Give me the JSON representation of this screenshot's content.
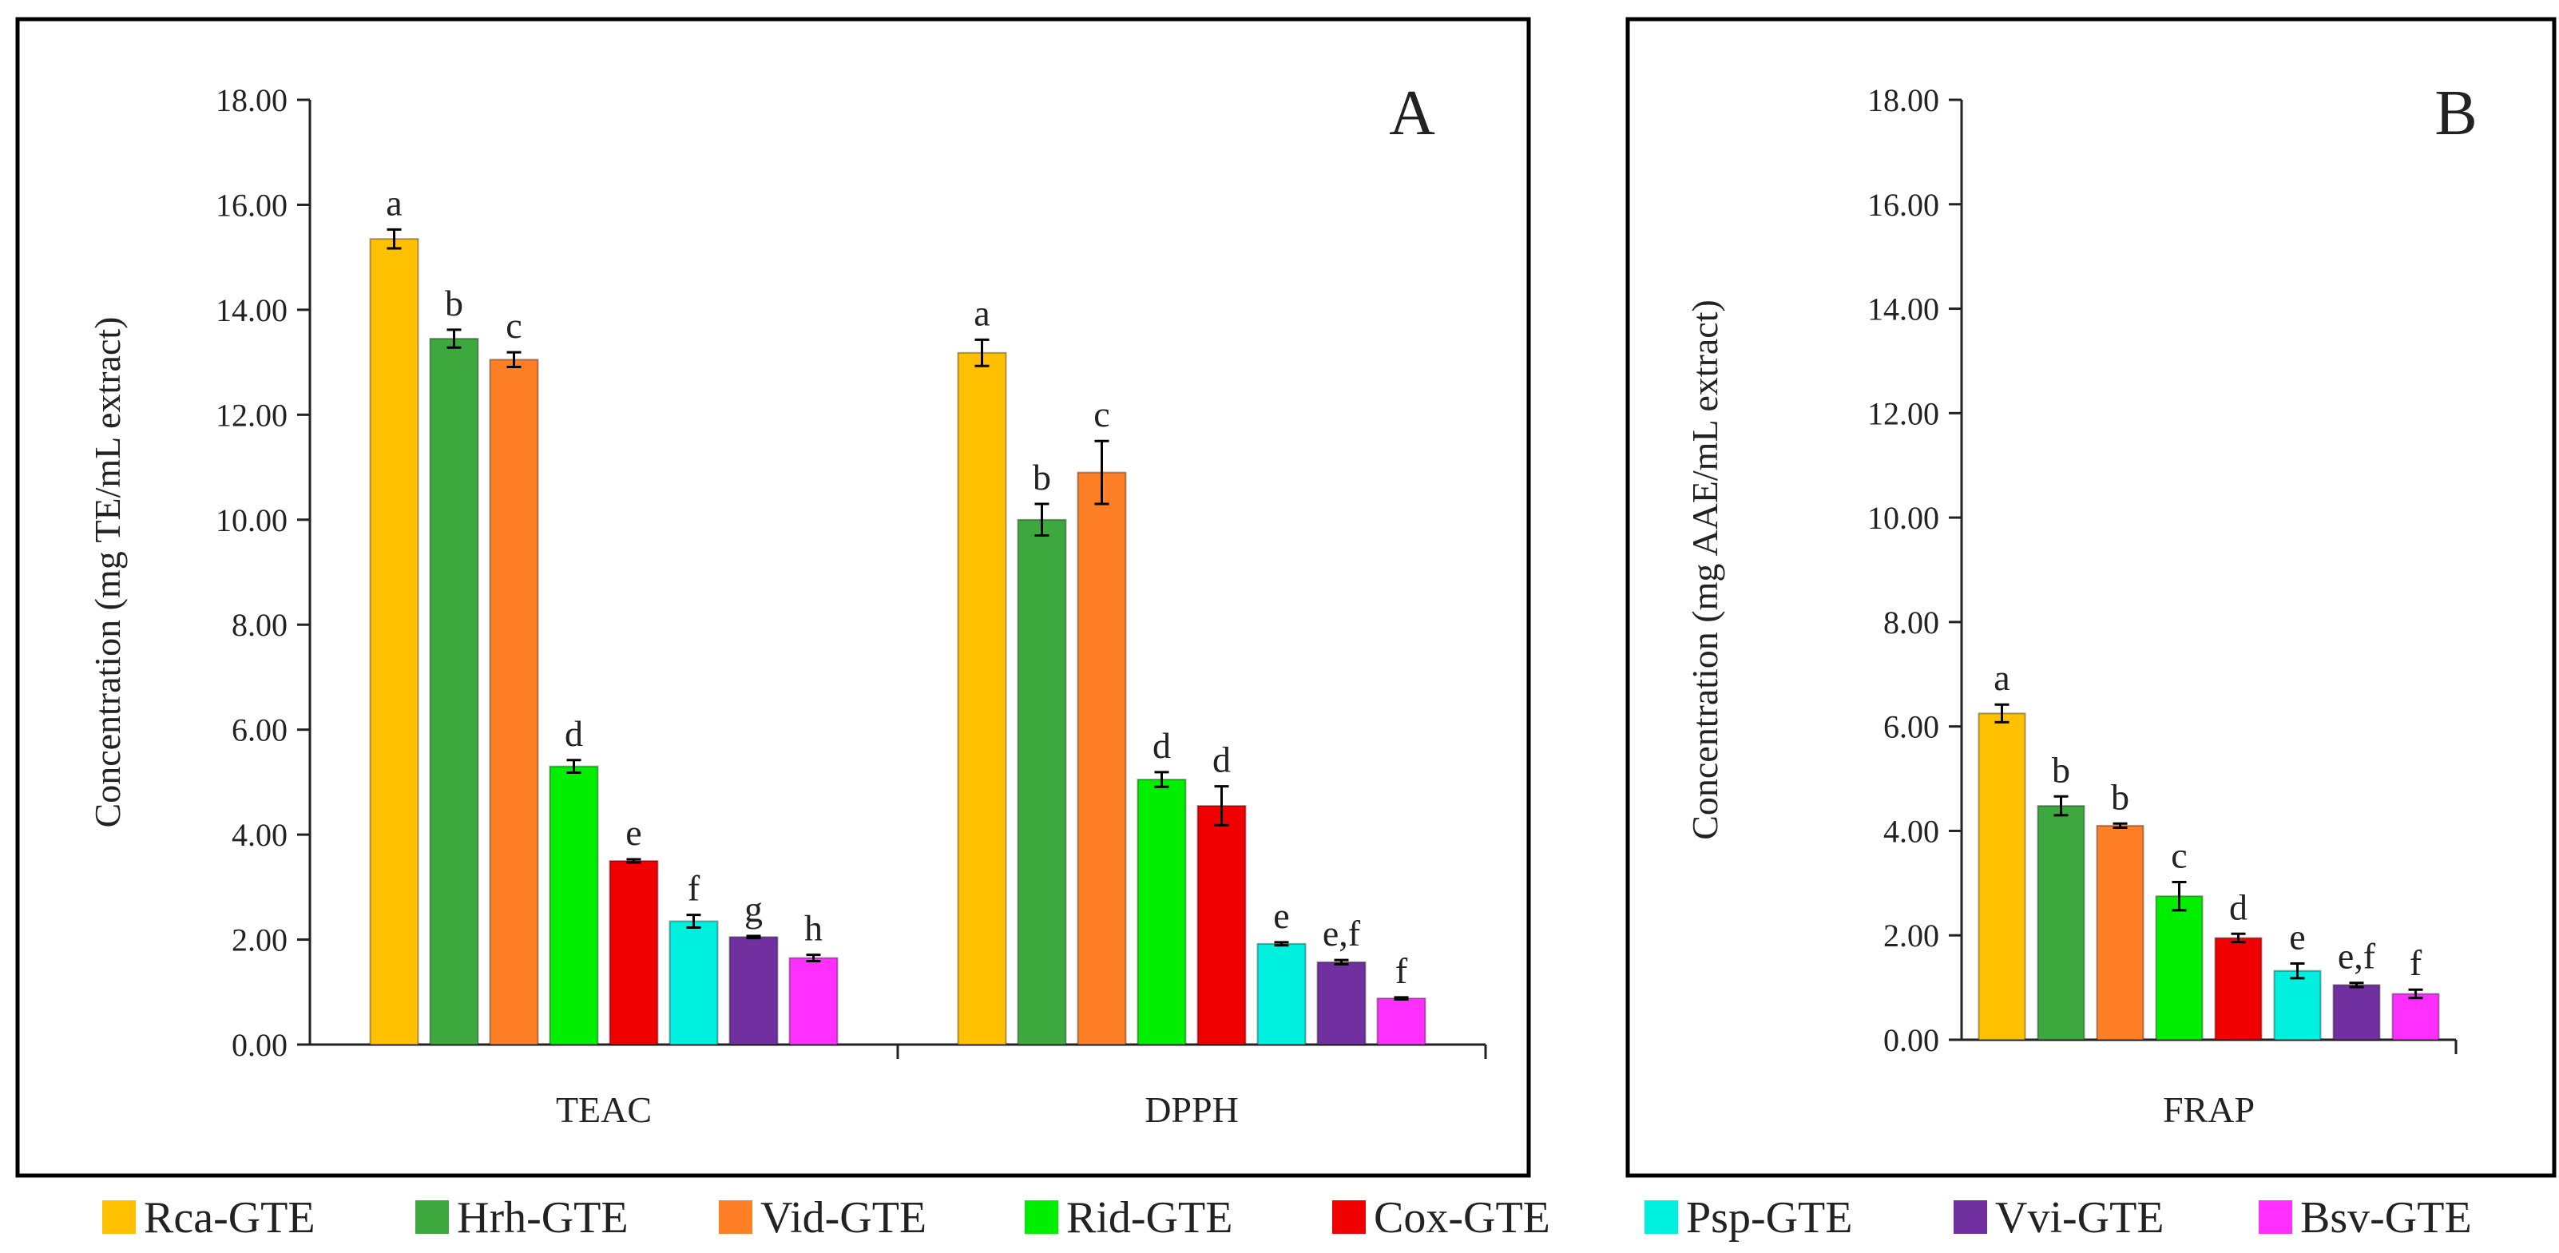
{
  "chart_data": [
    {
      "panel": "A",
      "type": "bar",
      "ylabel": "Concentration (mg TE/mL extract)",
      "ylim": [
        0,
        18
      ],
      "yticks": [
        0,
        2,
        4,
        6,
        8,
        10,
        12,
        14,
        16,
        18
      ],
      "ytick_labels": [
        "0.00",
        "2.00",
        "4.00",
        "6.00",
        "8.00",
        "10.00",
        "12.00",
        "14.00",
        "16.00",
        "18.00"
      ],
      "categories": [
        "TEAC",
        "DPPH"
      ],
      "series": [
        {
          "name": "Rca-GTE",
          "values": [
            15.35,
            13.18
          ],
          "errors": [
            0.18,
            0.25
          ],
          "labels": [
            "a",
            "a"
          ]
        },
        {
          "name": "Hrh-GTE",
          "values": [
            13.45,
            10.0
          ],
          "errors": [
            0.17,
            0.3
          ],
          "labels": [
            "b",
            "b"
          ]
        },
        {
          "name": "Vid-GTE",
          "values": [
            13.05,
            10.9
          ],
          "errors": [
            0.14,
            0.6
          ],
          "labels": [
            "c",
            "c"
          ]
        },
        {
          "name": "Rid-GTE",
          "values": [
            5.3,
            5.05
          ],
          "errors": [
            0.12,
            0.14
          ],
          "labels": [
            "d",
            "d"
          ]
        },
        {
          "name": "Cox-GTE",
          "values": [
            3.5,
            4.55
          ],
          "errors": [
            0.03,
            0.37
          ],
          "labels": [
            "e",
            "d"
          ]
        },
        {
          "name": "Psp-GTE",
          "values": [
            2.35,
            1.92
          ],
          "errors": [
            0.12,
            0.03
          ],
          "labels": [
            "f",
            "e"
          ]
        },
        {
          "name": "Vvi-GTE",
          "values": [
            2.05,
            1.57
          ],
          "errors": [
            0.02,
            0.04
          ],
          "labels": [
            "g",
            "e,f"
          ]
        },
        {
          "name": "Bsv-GTE",
          "values": [
            1.65,
            0.88
          ],
          "errors": [
            0.06,
            0.02
          ],
          "labels": [
            "h",
            "f"
          ]
        }
      ]
    },
    {
      "panel": "B",
      "type": "bar",
      "ylabel": "Concentration (mg  AAE/mL extract)",
      "ylim": [
        0,
        18
      ],
      "yticks": [
        0,
        2,
        4,
        6,
        8,
        10,
        12,
        14,
        16,
        18
      ],
      "ytick_labels": [
        "0.00",
        "2.00",
        "4.00",
        "6.00",
        "8.00",
        "10.00",
        "12.00",
        "14.00",
        "16.00",
        "18.00"
      ],
      "categories": [
        "FRAP"
      ],
      "series": [
        {
          "name": "Rca-GTE",
          "values": [
            6.25
          ],
          "errors": [
            0.17
          ],
          "labels": [
            "a"
          ]
        },
        {
          "name": "Hrh-GTE",
          "values": [
            4.48
          ],
          "errors": [
            0.18
          ],
          "labels": [
            "b"
          ]
        },
        {
          "name": "Vid-GTE",
          "values": [
            4.1
          ],
          "errors": [
            0.04
          ],
          "labels": [
            "b"
          ]
        },
        {
          "name": "Rid-GTE",
          "values": [
            2.75
          ],
          "errors": [
            0.27
          ],
          "labels": [
            "c"
          ]
        },
        {
          "name": "Cox-GTE",
          "values": [
            1.95
          ],
          "errors": [
            0.08
          ],
          "labels": [
            "d"
          ]
        },
        {
          "name": "Psp-GTE",
          "values": [
            1.32
          ],
          "errors": [
            0.14
          ],
          "labels": [
            "e"
          ]
        },
        {
          "name": "Vvi-GTE",
          "values": [
            1.05
          ],
          "errors": [
            0.04
          ],
          "labels": [
            "e,f"
          ]
        },
        {
          "name": "Bsv-GTE",
          "values": [
            0.88
          ],
          "errors": [
            0.08
          ],
          "labels": [
            "f"
          ]
        }
      ]
    }
  ],
  "series_colors": {
    "Rca-GTE": "#FFC000",
    "Hrh-GTE": "#3DA83D",
    "Vid-GTE": "#FF7F27",
    "Rid-GTE": "#00EE00",
    "Cox-GTE": "#F00000",
    "Psp-GTE": "#00F0E0",
    "Vvi-GTE": "#7030A0",
    "Bsv-GTE": "#FF30FF"
  },
  "legend": [
    "Rca-GTE",
    "Hrh-GTE",
    "Vid-GTE",
    "Rid-GTE",
    "Cox-GTE",
    "Psp-GTE",
    "Vvi-GTE",
    "Bsv-GTE"
  ]
}
